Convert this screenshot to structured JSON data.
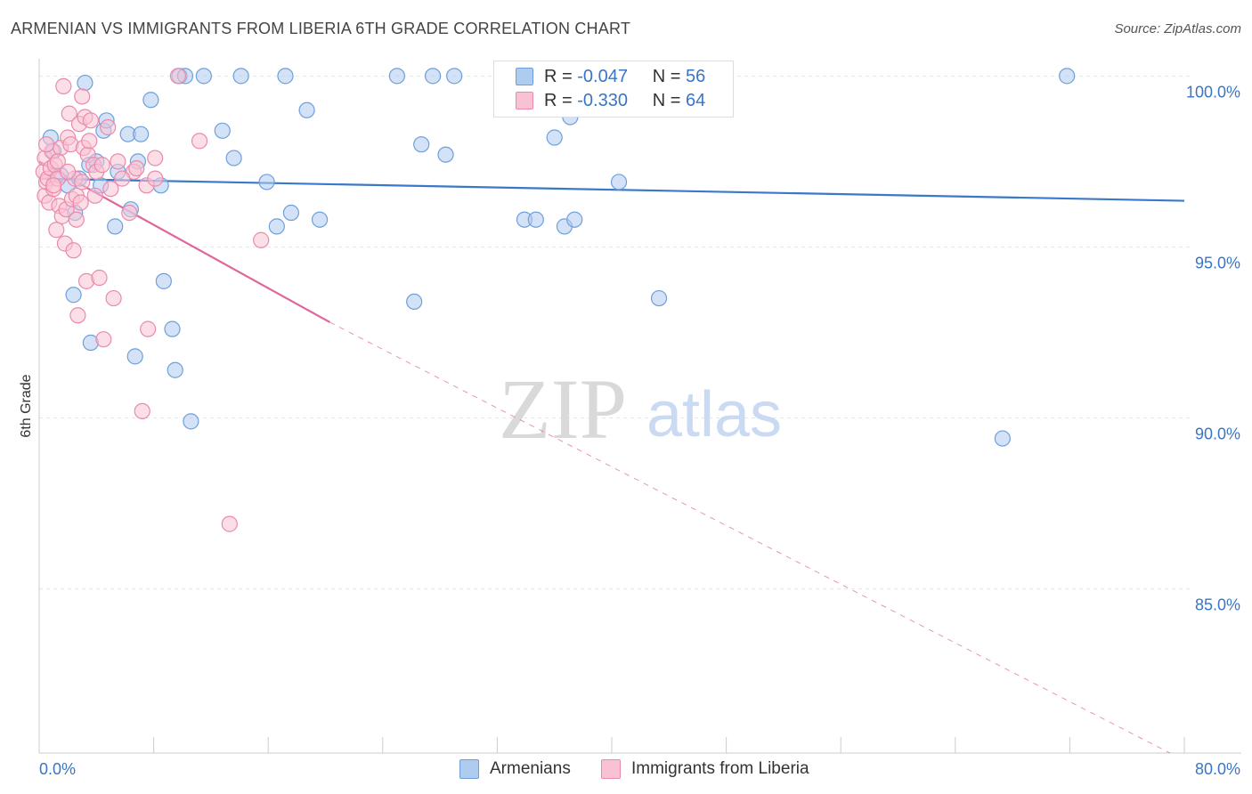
{
  "chart_data": {
    "type": "scatter",
    "title": "ARMENIAN VS IMMIGRANTS FROM LIBERIA 6TH GRADE CORRELATION CHART",
    "source": "Source: ZipAtlas.com",
    "ylabel": "6th Grade",
    "xlabel": "",
    "xlim": [
      0,
      80
    ],
    "ylim": [
      80.2,
      100.4
    ],
    "x_tick_labels": [
      "0.0%",
      "80.0%"
    ],
    "y_ticks": [
      {
        "value": 100,
        "label": "100.0%"
      },
      {
        "value": 95,
        "label": "95.0%"
      },
      {
        "value": 90,
        "label": "90.0%"
      },
      {
        "value": 85,
        "label": "85.0%"
      }
    ],
    "watermark": {
      "zip": "ZIP",
      "atlas": "atlas"
    },
    "legend": {
      "r_label": "R =",
      "n_label": "N =",
      "entries": [
        {
          "name": "Armenians",
          "r": "-0.047",
          "n": "56",
          "fill": "#aecbf0",
          "stroke": "#6f9fda"
        },
        {
          "name": "Immigrants from Liberia",
          "r": "-0.330",
          "n": "64",
          "fill": "#f9c2d4",
          "stroke": "#ea8aab"
        }
      ]
    },
    "series": [
      {
        "name": "Armenians",
        "color": "#6f9fda",
        "fill": "#aecbf0",
        "trend": {
          "x1": 0,
          "y1": 97.0,
          "x2": 80,
          "y2": 96.35,
          "color": "#3b78c9"
        },
        "points": [
          [
            0.8,
            98.2
          ],
          [
            1.0,
            97.8
          ],
          [
            1.5,
            97.1
          ],
          [
            2.0,
            96.8
          ],
          [
            2.4,
            93.6
          ],
          [
            2.5,
            96.0
          ],
          [
            2.8,
            97.0
          ],
          [
            3.2,
            99.8
          ],
          [
            3.5,
            97.4
          ],
          [
            3.6,
            92.2
          ],
          [
            4.0,
            97.5
          ],
          [
            4.3,
            96.8
          ],
          [
            4.5,
            98.4
          ],
          [
            4.7,
            98.7
          ],
          [
            5.3,
            95.6
          ],
          [
            5.5,
            97.2
          ],
          [
            6.2,
            98.3
          ],
          [
            6.4,
            96.1
          ],
          [
            6.7,
            91.8
          ],
          [
            6.9,
            97.5
          ],
          [
            7.1,
            98.3
          ],
          [
            7.8,
            99.3
          ],
          [
            8.5,
            96.8
          ],
          [
            8.7,
            94.0
          ],
          [
            9.3,
            92.6
          ],
          [
            9.5,
            91.4
          ],
          [
            9.8,
            100.0
          ],
          [
            10.2,
            100.0
          ],
          [
            10.6,
            89.9
          ],
          [
            11.5,
            100.0
          ],
          [
            12.8,
            98.4
          ],
          [
            13.6,
            97.6
          ],
          [
            14.1,
            100.0
          ],
          [
            15.9,
            96.9
          ],
          [
            16.6,
            95.6
          ],
          [
            17.2,
            100.0
          ],
          [
            17.6,
            96.0
          ],
          [
            18.7,
            99.0
          ],
          [
            19.6,
            95.8
          ],
          [
            25.0,
            100.0
          ],
          [
            26.2,
            93.4
          ],
          [
            26.7,
            98.0
          ],
          [
            27.5,
            100.0
          ],
          [
            28.4,
            97.7
          ],
          [
            29.0,
            100.0
          ],
          [
            32.6,
            100.0
          ],
          [
            33.9,
            95.8
          ],
          [
            34.7,
            95.8
          ],
          [
            37.1,
            98.8
          ],
          [
            36.7,
            95.6
          ],
          [
            37.4,
            95.8
          ],
          [
            40.5,
            96.9
          ],
          [
            43.3,
            93.5
          ],
          [
            67.3,
            89.4
          ],
          [
            71.8,
            100.0
          ],
          [
            36.0,
            98.2
          ]
        ]
      },
      {
        "name": "Immigrants from Liberia",
        "color": "#ea8aab",
        "fill": "#f9c2d4",
        "trend": {
          "x1": 0,
          "y1": 97.5,
          "x2": 20.3,
          "y2": 92.8,
          "color": "#e0659a",
          "dash_x2": 79,
          "dash_y2": 80.2
        },
        "points": [
          [
            0.3,
            97.2
          ],
          [
            0.4,
            96.5
          ],
          [
            0.4,
            97.6
          ],
          [
            0.5,
            96.9
          ],
          [
            0.6,
            97.0
          ],
          [
            0.7,
            96.3
          ],
          [
            0.8,
            97.3
          ],
          [
            0.9,
            97.8
          ],
          [
            1.0,
            96.7
          ],
          [
            1.1,
            97.4
          ],
          [
            1.2,
            95.5
          ],
          [
            1.3,
            97.0
          ],
          [
            1.4,
            96.2
          ],
          [
            1.5,
            97.9
          ],
          [
            1.6,
            95.9
          ],
          [
            1.7,
            99.7
          ],
          [
            1.8,
            95.1
          ],
          [
            1.9,
            96.1
          ],
          [
            2.0,
            98.2
          ],
          [
            2.1,
            98.9
          ],
          [
            2.2,
            98.0
          ],
          [
            2.3,
            96.4
          ],
          [
            2.4,
            94.9
          ],
          [
            2.5,
            97.0
          ],
          [
            2.6,
            96.5
          ],
          [
            2.7,
            93.0
          ],
          [
            2.8,
            98.6
          ],
          [
            2.9,
            96.3
          ],
          [
            3.0,
            99.4
          ],
          [
            3.1,
            97.9
          ],
          [
            3.2,
            98.8
          ],
          [
            3.3,
            94.0
          ],
          [
            3.4,
            97.7
          ],
          [
            3.5,
            98.1
          ],
          [
            3.6,
            98.7
          ],
          [
            3.8,
            97.4
          ],
          [
            4.0,
            97.2
          ],
          [
            4.2,
            94.1
          ],
          [
            4.4,
            97.4
          ],
          [
            4.5,
            92.3
          ],
          [
            4.8,
            98.5
          ],
          [
            5.0,
            96.7
          ],
          [
            5.2,
            93.5
          ],
          [
            5.5,
            97.5
          ],
          [
            6.3,
            96.0
          ],
          [
            6.6,
            97.2
          ],
          [
            7.2,
            90.2
          ],
          [
            7.5,
            96.8
          ],
          [
            7.6,
            92.6
          ],
          [
            8.1,
            97.0
          ],
          [
            8.1,
            97.6
          ],
          [
            9.7,
            100.0
          ],
          [
            11.2,
            98.1
          ],
          [
            13.3,
            86.9
          ],
          [
            15.5,
            95.2
          ],
          [
            0.5,
            98.0
          ],
          [
            1.0,
            96.8
          ],
          [
            1.3,
            97.5
          ],
          [
            2.0,
            97.2
          ],
          [
            2.6,
            95.8
          ],
          [
            3.0,
            96.9
          ],
          [
            3.9,
            96.5
          ],
          [
            5.8,
            97.0
          ],
          [
            6.8,
            97.3
          ]
        ]
      }
    ]
  }
}
